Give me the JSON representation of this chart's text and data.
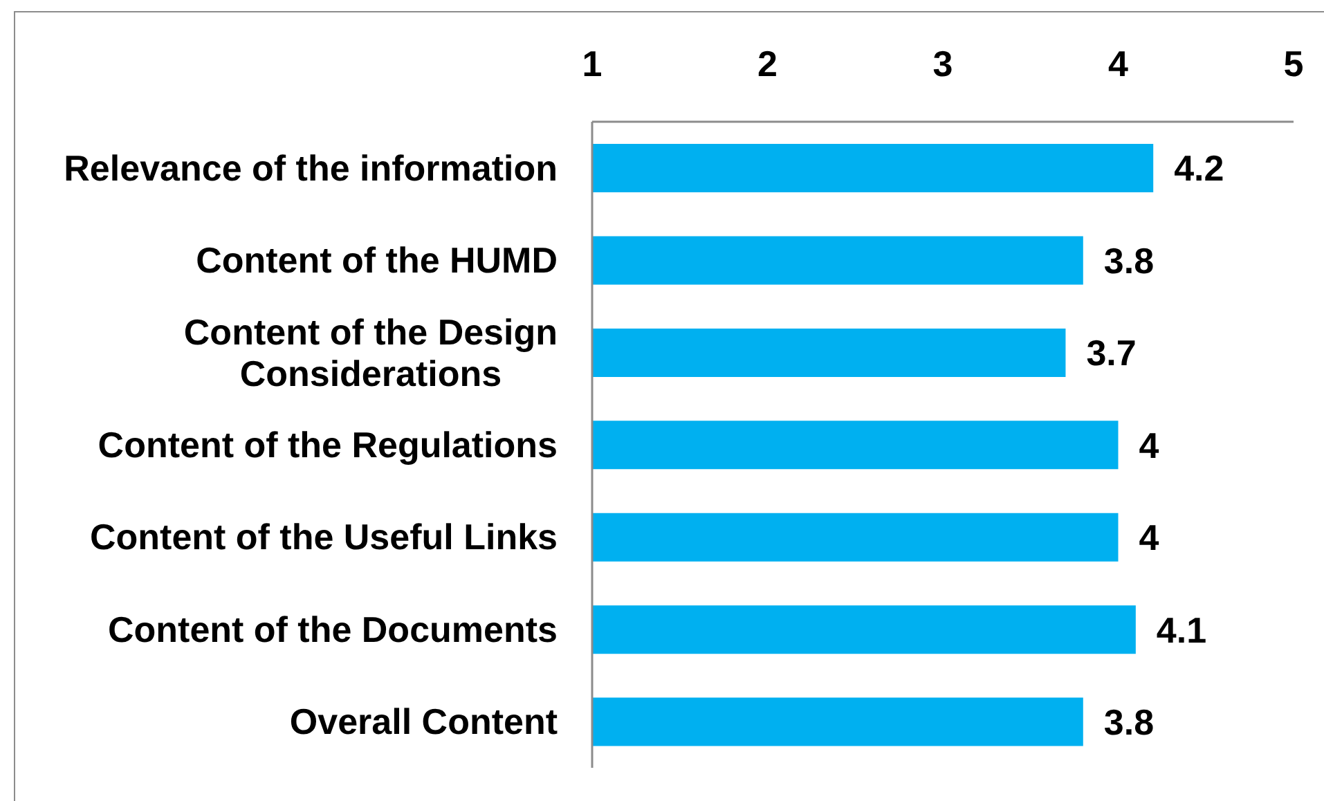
{
  "chart_data": {
    "type": "bar",
    "orientation": "horizontal",
    "categories": [
      "Relevance of the information",
      "Content of the HUMD",
      "Content of the Design Considerations",
      "Content of the Regulations",
      "Content of the Useful Links",
      "Content of the Documents",
      "Overall Content"
    ],
    "values": [
      4.2,
      3.8,
      3.7,
      4,
      4,
      4.1,
      3.8
    ],
    "color": "#00b0f0",
    "xlim": [
      1,
      5
    ],
    "xticks": [
      1,
      2,
      3,
      4,
      5
    ],
    "grid": false,
    "data_labels": true
  }
}
